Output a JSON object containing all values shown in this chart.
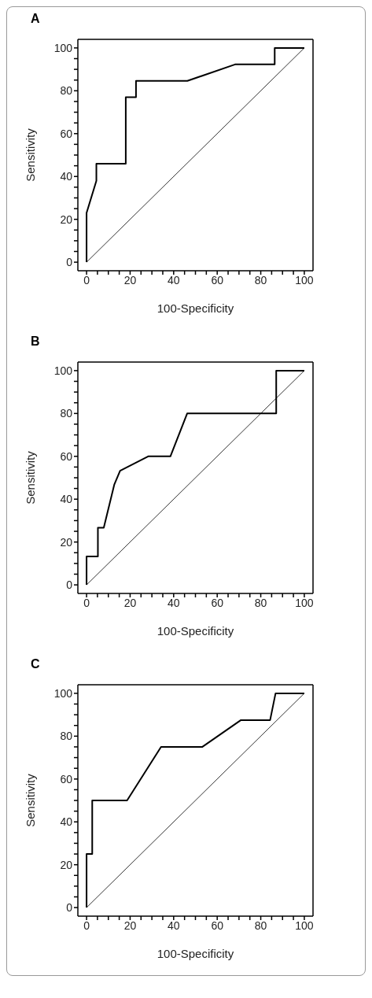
{
  "chart_data": [
    {
      "type": "line",
      "title": "A",
      "xlabel": "100-Specificity",
      "ylabel": "Sensitivity",
      "xlim": [
        -4,
        104
      ],
      "ylim": [
        -4,
        104
      ],
      "xticks": [
        0,
        {
          "value": 5,
          "label": null
        },
        {
          "value": 10,
          "label": null
        },
        {
          "value": 15,
          "label": null
        },
        20,
        {
          "value": 25,
          "label": null
        },
        {
          "value": 30,
          "label": null
        },
        {
          "value": 35,
          "label": null
        },
        40,
        {
          "value": 45,
          "label": null
        },
        {
          "value": 50,
          "label": null
        },
        {
          "value": 55,
          "label": null
        },
        60,
        {
          "value": 65,
          "label": null
        },
        {
          "value": 70,
          "label": null
        },
        {
          "value": 75,
          "label": null
        },
        80,
        {
          "value": 85,
          "label": null
        },
        {
          "value": 90,
          "label": null
        },
        {
          "value": 95,
          "label": null
        },
        100
      ],
      "yticks": [
        0,
        {
          "value": 5,
          "label": null
        },
        {
          "value": 10,
          "label": null
        },
        {
          "value": 15,
          "label": null
        },
        20,
        {
          "value": 25,
          "label": null
        },
        {
          "value": 30,
          "label": null
        },
        {
          "value": 35,
          "label": null
        },
        40,
        {
          "value": 45,
          "label": null
        },
        {
          "value": 50,
          "label": null
        },
        {
          "value": 55,
          "label": null
        },
        60,
        {
          "value": 65,
          "label": null
        },
        {
          "value": 70,
          "label": null
        },
        {
          "value": 75,
          "label": null
        },
        80,
        {
          "value": 85,
          "label": null
        },
        {
          "value": 90,
          "label": null
        },
        {
          "value": 95,
          "label": null
        },
        100
      ],
      "grid": false,
      "series": [
        {
          "color": "#000000",
          "x": [
            0,
            0,
            4.5,
            4.5,
            18,
            18,
            22.7,
            22.7,
            46.3,
            68.2,
            86.4,
            86.4,
            100
          ],
          "values": [
            0,
            23,
            38,
            46,
            46,
            77,
            77,
            84.6,
            84.6,
            92.3,
            92.3,
            100,
            100
          ]
        },
        {
          "color": "#000000",
          "x": [
            0,
            100
          ],
          "values": [
            0,
            100
          ]
        }
      ]
    },
    {
      "type": "line",
      "title": "B",
      "xlabel": "100-Specificity",
      "ylabel": "Sensitivity",
      "xlim": [
        -4,
        104
      ],
      "ylim": [
        -4,
        104
      ],
      "xticks": [
        0,
        {
          "value": 5,
          "label": null
        },
        {
          "value": 10,
          "label": null
        },
        {
          "value": 15,
          "label": null
        },
        20,
        {
          "value": 25,
          "label": null
        },
        {
          "value": 30,
          "label": null
        },
        {
          "value": 35,
          "label": null
        },
        40,
        {
          "value": 45,
          "label": null
        },
        {
          "value": 50,
          "label": null
        },
        {
          "value": 55,
          "label": null
        },
        60,
        {
          "value": 65,
          "label": null
        },
        {
          "value": 70,
          "label": null
        },
        {
          "value": 75,
          "label": null
        },
        80,
        {
          "value": 85,
          "label": null
        },
        {
          "value": 90,
          "label": null
        },
        {
          "value": 95,
          "label": null
        },
        100
      ],
      "yticks": [
        0,
        {
          "value": 5,
          "label": null
        },
        {
          "value": 10,
          "label": null
        },
        {
          "value": 15,
          "label": null
        },
        20,
        {
          "value": 25,
          "label": null
        },
        {
          "value": 30,
          "label": null
        },
        {
          "value": 35,
          "label": null
        },
        40,
        {
          "value": 45,
          "label": null
        },
        {
          "value": 50,
          "label": null
        },
        {
          "value": 55,
          "label": null
        },
        60,
        {
          "value": 65,
          "label": null
        },
        {
          "value": 70,
          "label": null
        },
        {
          "value": 75,
          "label": null
        },
        80,
        {
          "value": 85,
          "label": null
        },
        {
          "value": 90,
          "label": null
        },
        {
          "value": 95,
          "label": null
        },
        100
      ],
      "grid": false,
      "series": [
        {
          "color": "#000000",
          "x": [
            0,
            0,
            5.2,
            5.2,
            7.9,
            12.7,
            15.4,
            28.3,
            38.5,
            46.2,
            87.1,
            87.1,
            100
          ],
          "values": [
            0,
            13.3,
            13.3,
            26.7,
            26.7,
            46.7,
            53.3,
            60,
            60,
            80,
            80,
            100,
            100
          ]
        },
        {
          "color": "#000000",
          "x": [
            0,
            100
          ],
          "values": [
            0,
            100
          ]
        }
      ]
    },
    {
      "type": "line",
      "title": "C",
      "xlabel": "100-Specificity",
      "ylabel": "Sensitivity",
      "xlim": [
        -4,
        104
      ],
      "ylim": [
        -4,
        104
      ],
      "xticks": [
        0,
        {
          "value": 5,
          "label": null
        },
        {
          "value": 10,
          "label": null
        },
        {
          "value": 15,
          "label": null
        },
        20,
        {
          "value": 25,
          "label": null
        },
        {
          "value": 30,
          "label": null
        },
        {
          "value": 35,
          "label": null
        },
        40,
        {
          "value": 45,
          "label": null
        },
        {
          "value": 50,
          "label": null
        },
        {
          "value": 55,
          "label": null
        },
        60,
        {
          "value": 65,
          "label": null
        },
        {
          "value": 70,
          "label": null
        },
        {
          "value": 75,
          "label": null
        },
        80,
        {
          "value": 85,
          "label": null
        },
        {
          "value": 90,
          "label": null
        },
        {
          "value": 95,
          "label": null
        },
        100
      ],
      "yticks": [
        0,
        {
          "value": 5,
          "label": null
        },
        {
          "value": 10,
          "label": null
        },
        {
          "value": 15,
          "label": null
        },
        20,
        {
          "value": 25,
          "label": null
        },
        {
          "value": 30,
          "label": null
        },
        {
          "value": 35,
          "label": null
        },
        40,
        {
          "value": 45,
          "label": null
        },
        {
          "value": 50,
          "label": null
        },
        {
          "value": 55,
          "label": null
        },
        60,
        {
          "value": 65,
          "label": null
        },
        {
          "value": 70,
          "label": null
        },
        {
          "value": 75,
          "label": null
        },
        80,
        {
          "value": 85,
          "label": null
        },
        {
          "value": 90,
          "label": null
        },
        {
          "value": 95,
          "label": null
        },
        100
      ],
      "grid": false,
      "series": [
        {
          "color": "#000000",
          "x": [
            0,
            0,
            2.6,
            2.6,
            18.6,
            34.2,
            53.2,
            70.9,
            84.3,
            86.8,
            100
          ],
          "values": [
            0,
            25,
            25,
            50,
            50,
            75,
            75,
            87.5,
            87.5,
            100,
            100
          ]
        },
        {
          "color": "#000000",
          "x": [
            0,
            100
          ],
          "values": [
            0,
            100
          ]
        }
      ]
    }
  ]
}
